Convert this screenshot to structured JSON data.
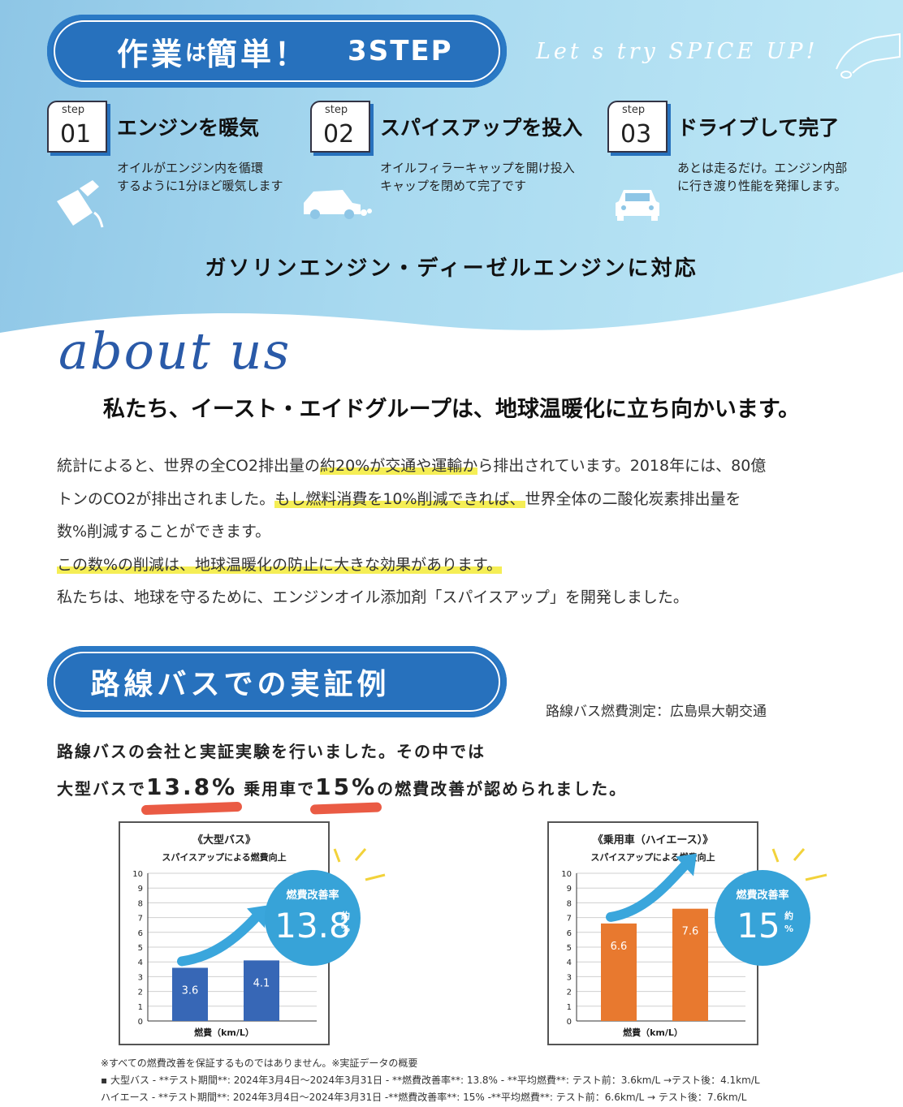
{
  "header": {
    "title_main": "作業",
    "title_ha": "は",
    "title_easy": "簡単！",
    "title_step": "3STEP",
    "tagline": "Let s try  SPICE UP!"
  },
  "steps": [
    {
      "badge": "step",
      "num": "01",
      "title": "エンジンを暖気",
      "desc": "オイルがエンジン内を循環\nするように1分ほど暖気します",
      "icon": "oil-can-icon"
    },
    {
      "badge": "step",
      "num": "02",
      "title": "スパイスアップを投入",
      "desc": "オイルフィラーキャップを開け投入\nキャップを閉めて完了です",
      "icon": "car-side-icon"
    },
    {
      "badge": "step",
      "num": "03",
      "title": "ドライブして完了",
      "desc": "あとは走るだけ。エンジン内部\nに行き渡り性能を発揮します。",
      "icon": "car-front-icon"
    }
  ],
  "support_line": "ガソリンエンジン・ディーゼルエンジンに対応",
  "about": {
    "heading": "about us",
    "headline": "私たち、イースト・エイドグループは、地球温暖化に立ち向かいます。",
    "lines": [
      {
        "pre": "統計によると、世界の全CO2排出量の",
        "hl": "約20%が交通や運輸か",
        "post": "ら排出されています。2018年には、80億"
      },
      {
        "pre": "トンのCO2が排出されました。",
        "hl": "もし燃料消費を10%削減できれば、",
        "post": "世界全体の二酸化炭素排出量を"
      },
      {
        "pre": "数%削減することができます。",
        "hl": "",
        "post": ""
      },
      {
        "pre": "",
        "hl": "この数%の削減は、地球温暖化の防止に大きな効果があります。",
        "post": ""
      },
      {
        "pre": "私たちは、地球を守るために、エンジンオイル添加剤「スパイスアップ」を開発しました。",
        "hl": "",
        "post": ""
      }
    ]
  },
  "bus_section": {
    "title": "路線バスでの実証例",
    "source": "路線バス燃費測定：広島県大朝交通",
    "line1": "路線バスの会社と実証実験を行いました。その中では",
    "line2_a": "大型バスで",
    "line2_val1": "13.8%",
    "line2_b": "乗用車で",
    "line2_val2": "15%",
    "line2_c": "の燃費改善が認められました。"
  },
  "chart_data": [
    {
      "type": "bar",
      "title": "《大型バス》",
      "subtitle": "スパイスアップによる燃費向上",
      "xlabel": "燃費（km/L）",
      "categories": [
        "",
        ""
      ],
      "values": [
        3.6,
        4.1
      ],
      "value_labels": [
        "3.6",
        "4.1"
      ],
      "ylim": [
        0,
        10
      ],
      "yticks": [
        "0",
        "1",
        "2",
        "3",
        "4",
        "5",
        "6",
        "7",
        "8",
        "9",
        "10"
      ],
      "grid": true,
      "color": "#3767b6",
      "badge": {
        "label": "燃費改善率",
        "value": "13.8",
        "unit_top": "約",
        "unit_bottom": "%"
      }
    },
    {
      "type": "bar",
      "title": "《乗用車（ハイエース）》",
      "subtitle": "スパイスアップによる燃費向上",
      "xlabel": "燃費（km/L）",
      "categories": [
        "",
        ""
      ],
      "values": [
        6.6,
        7.6
      ],
      "value_labels": [
        "6.6",
        "7.6"
      ],
      "ylim": [
        0,
        10
      ],
      "yticks": [
        "0",
        "1",
        "2",
        "3",
        "4",
        "5",
        "6",
        "7",
        "8",
        "9",
        "10"
      ],
      "grid": true,
      "color": "#e8792f",
      "badge": {
        "label": "燃費改善率",
        "value": "15",
        "unit_top": "約",
        "unit_bottom": "%"
      }
    }
  ],
  "notes": [
    "※すべての燃費改善を保証するものではありません。※実証データの概要",
    "▪ 大型バス - **テスト期間**: 2024年3月4日〜2024年3月31日 - **燃費改善率**: 13.8% - **平均燃費**: テスト前：3.6km/L →テスト後：4.1km/L",
    "ハイエース - **テスト期間**: 2024年3月4日〜2024年3月31日 -**燃費改善率**: 15% -**平均燃費**: テスト前：6.6km/L → テスト後：7.6km/L"
  ]
}
